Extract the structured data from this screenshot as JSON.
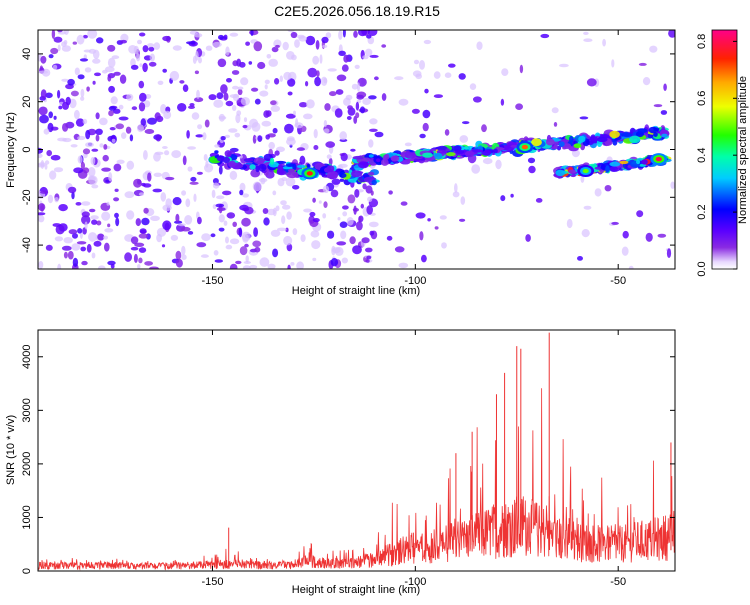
{
  "title": "C2E5.2026.056.18.19.R15",
  "colors": {
    "snr_line": "#ee3333",
    "axis": "#000000",
    "background": "#ffffff"
  },
  "chart_data": [
    {
      "type": "heatmap",
      "name": "spectrogram",
      "xlabel": "Height of straight line (km)",
      "ylabel": "Frequency (Hz)",
      "xlim": [
        -193,
        -36
      ],
      "ylim": [
        -50,
        50
      ],
      "xticks": [
        -150,
        -100,
        -50
      ],
      "yticks": [
        -40,
        -20,
        0,
        20,
        40
      ],
      "colorbar": {
        "label": "Normalized spectral amplitude",
        "range": [
          0,
          0.84
        ],
        "ticks": [
          0.0,
          0.2,
          0.4,
          0.6,
          0.8
        ],
        "colormap": "rainbow (white-violet-blue-cyan-green-yellow-red-magenta)"
      },
      "features": [
        {
          "description": "background noise scatter",
          "x_range": [
            -193,
            -110
          ],
          "freq_range": [
            -50,
            50
          ],
          "amplitude": 0.05
        },
        {
          "description": "upper band",
          "x_start": -115,
          "x_end": -38,
          "freq_start": -5,
          "freq_end": 7,
          "amplitude_max": 0.55
        },
        {
          "description": "lower band",
          "x_start": -65,
          "x_end": -38,
          "freq_start": -10,
          "freq_end": -4,
          "amplitude_max": 0.8
        },
        {
          "description": "early band",
          "x_start": -150,
          "x_end": -110,
          "freq_start": -4,
          "freq_end": -12,
          "amplitude_max": 0.5
        }
      ],
      "hotspots": [
        {
          "x": -126,
          "freq": -10,
          "amplitude": 0.75
        },
        {
          "x": -73,
          "freq": 1,
          "amplitude": 0.7
        },
        {
          "x": -40,
          "freq": -4,
          "amplitude": 0.8
        },
        {
          "x": -58,
          "freq": -9,
          "amplitude": 0.5
        }
      ]
    },
    {
      "type": "line",
      "name": "snr",
      "xlabel": "Height of straight line (km)",
      "ylabel": "SNR (10 * v/v)",
      "xlim": [
        -193,
        -36
      ],
      "ylim": [
        0,
        4500
      ],
      "xticks": [
        -150,
        -100,
        -50
      ],
      "yticks": [
        0,
        1000,
        2000,
        3000,
        4000
      ],
      "envelope_x": [
        -193,
        -170,
        -160,
        -155,
        -150,
        -145,
        -140,
        -130,
        -126,
        -124,
        -120,
        -115,
        -110,
        -105,
        -100,
        -95,
        -90,
        -85,
        -80,
        -77,
        -75,
        -72,
        -70,
        -68,
        -65,
        -60,
        -55,
        -50,
        -45,
        -40,
        -36
      ],
      "envelope_base": [
        120,
        110,
        110,
        120,
        140,
        150,
        130,
        120,
        260,
        180,
        170,
        190,
        250,
        400,
        520,
        560,
        650,
        750,
        900,
        950,
        1000,
        950,
        900,
        850,
        700,
        650,
        600,
        580,
        650,
        700,
        800
      ],
      "envelope_max": [
        250,
        230,
        220,
        280,
        420,
        520,
        260,
        240,
        650,
        380,
        380,
        420,
        600,
        1500,
        1800,
        2000,
        2600,
        2700,
        3200,
        4000,
        4200,
        3500,
        3400,
        4300,
        2800,
        2200,
        1800,
        1600,
        1800,
        2200,
        2400
      ],
      "peaks": [
        {
          "x": -78,
          "y": 3700
        },
        {
          "x": -75,
          "y": 4200
        },
        {
          "x": -74,
          "y": 4150
        },
        {
          "x": -67,
          "y": 4450
        },
        {
          "x": -80,
          "y": 3300
        },
        {
          "x": -86,
          "y": 2600
        },
        {
          "x": -90,
          "y": 2200
        },
        {
          "x": -146,
          "y": 810
        },
        {
          "x": -37,
          "y": 2400
        }
      ]
    }
  ]
}
